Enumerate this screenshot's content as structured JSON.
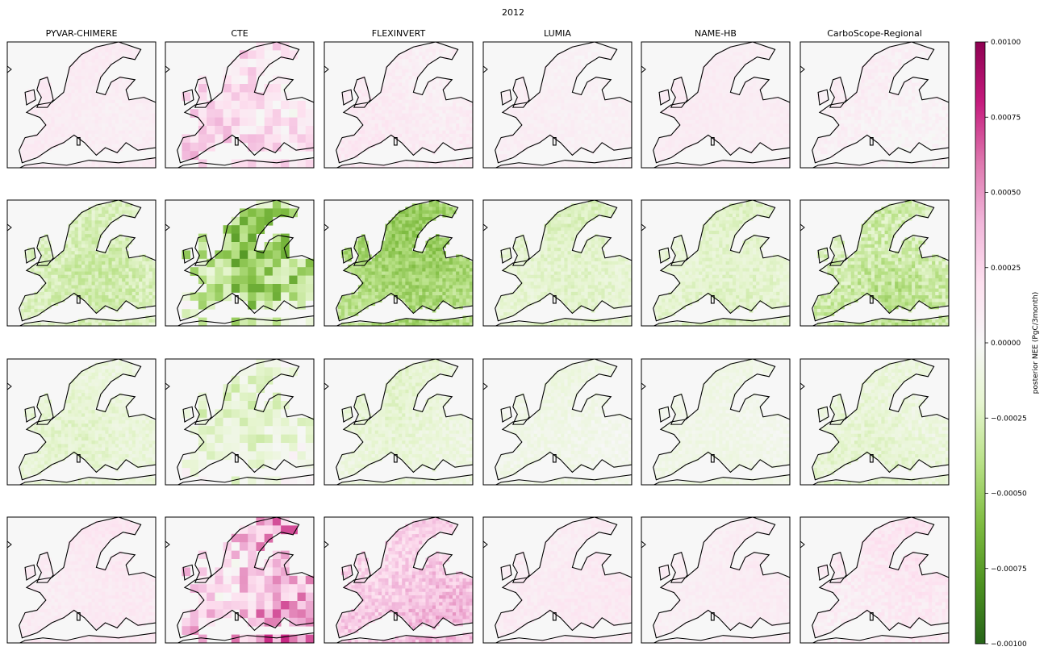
{
  "figure": {
    "title": "2012",
    "colorbar_label": "posterior NEE (PgC/3month)"
  },
  "chart_data": {
    "type": "heatmap",
    "title": "2012",
    "models": [
      "PYVAR-CHIMERE",
      "CTE",
      "FLEXINVERT",
      "LUMIA",
      "NAME-HB",
      "CarboScope-Regional"
    ],
    "rows": 4,
    "colorbar": {
      "label": "posterior NEE (PgC/3month)",
      "range": [
        -0.001,
        0.001
      ],
      "ticks": [
        0.001,
        0.00075,
        0.0005,
        0.00025,
        0.0,
        -0.00025,
        -0.0005,
        -0.00075,
        -0.001
      ],
      "tick_labels": [
        "0.00100",
        "0.00075",
        "0.00050",
        "0.00025",
        "0.00000",
        "−0.00025",
        "−0.00050",
        "−0.00075",
        "−0.00100"
      ],
      "colormap": "PiYG (reversed): green = negative, pink = positive",
      "colors": {
        "neg_max": "#276419",
        "zero": "#f7f7f7",
        "pos_max": "#8e0152"
      }
    },
    "panel_mean_values": [
      [
        0.0001,
        0.00022,
        0.0001,
        6e-05,
        9e-05,
        6e-05
      ],
      [
        -0.00025,
        -0.00035,
        -0.00045,
        -0.0002,
        -0.0002,
        -0.0003
      ],
      [
        -0.00015,
        -0.00012,
        -0.00015,
        -8e-05,
        -8e-05,
        -0.00015
      ],
      [
        0.00012,
        0.00035,
        0.0003,
        0.0001,
        8e-05,
        0.00012
      ]
    ],
    "panel_variability": [
      [
        4e-05,
        0.0002,
        6e-05,
        4e-05,
        3e-05,
        6e-05
      ],
      [
        0.0001,
        0.0003,
        0.00012,
        8e-05,
        8e-05,
        0.00014
      ],
      [
        8e-05,
        0.00016,
        8e-05,
        6e-05,
        5e-05,
        9e-05
      ],
      [
        5e-05,
        0.0003,
        0.00015,
        5e-05,
        4e-05,
        8e-05
      ]
    ],
    "panel_grid_size": [
      [
        44,
        18,
        44,
        44,
        44,
        44
      ],
      [
        44,
        18,
        44,
        44,
        44,
        44
      ],
      [
        44,
        18,
        44,
        44,
        44,
        44
      ],
      [
        44,
        18,
        44,
        44,
        44,
        44
      ]
    ]
  }
}
